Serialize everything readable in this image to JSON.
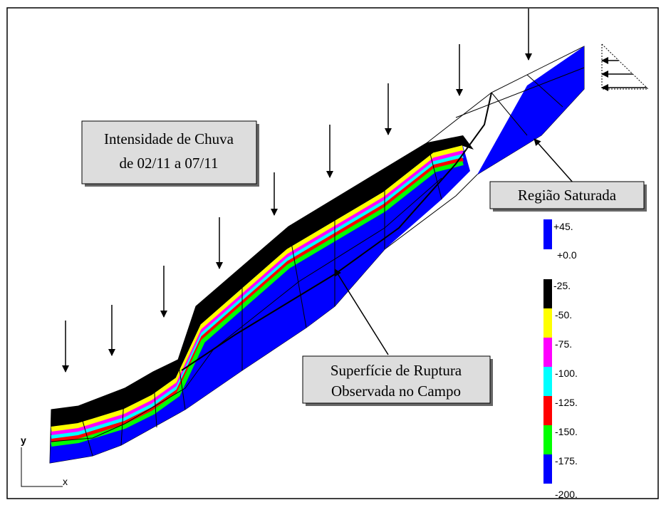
{
  "annotations": {
    "rain": [
      "Intensidade de Chuva",
      "de 02/11 a 07/11"
    ],
    "saturated": "Região Saturada",
    "rupture": [
      "Superfície de Ruptura",
      "Observada no Campo"
    ]
  },
  "legend": {
    "positive": [
      "+45.",
      "+0.0"
    ],
    "negative": [
      "-25.",
      "-50.",
      "-75.",
      "-100.",
      "-125.",
      "-150.",
      "-175.",
      "-200."
    ]
  },
  "axes": {
    "y": "y",
    "x": "x"
  }
}
